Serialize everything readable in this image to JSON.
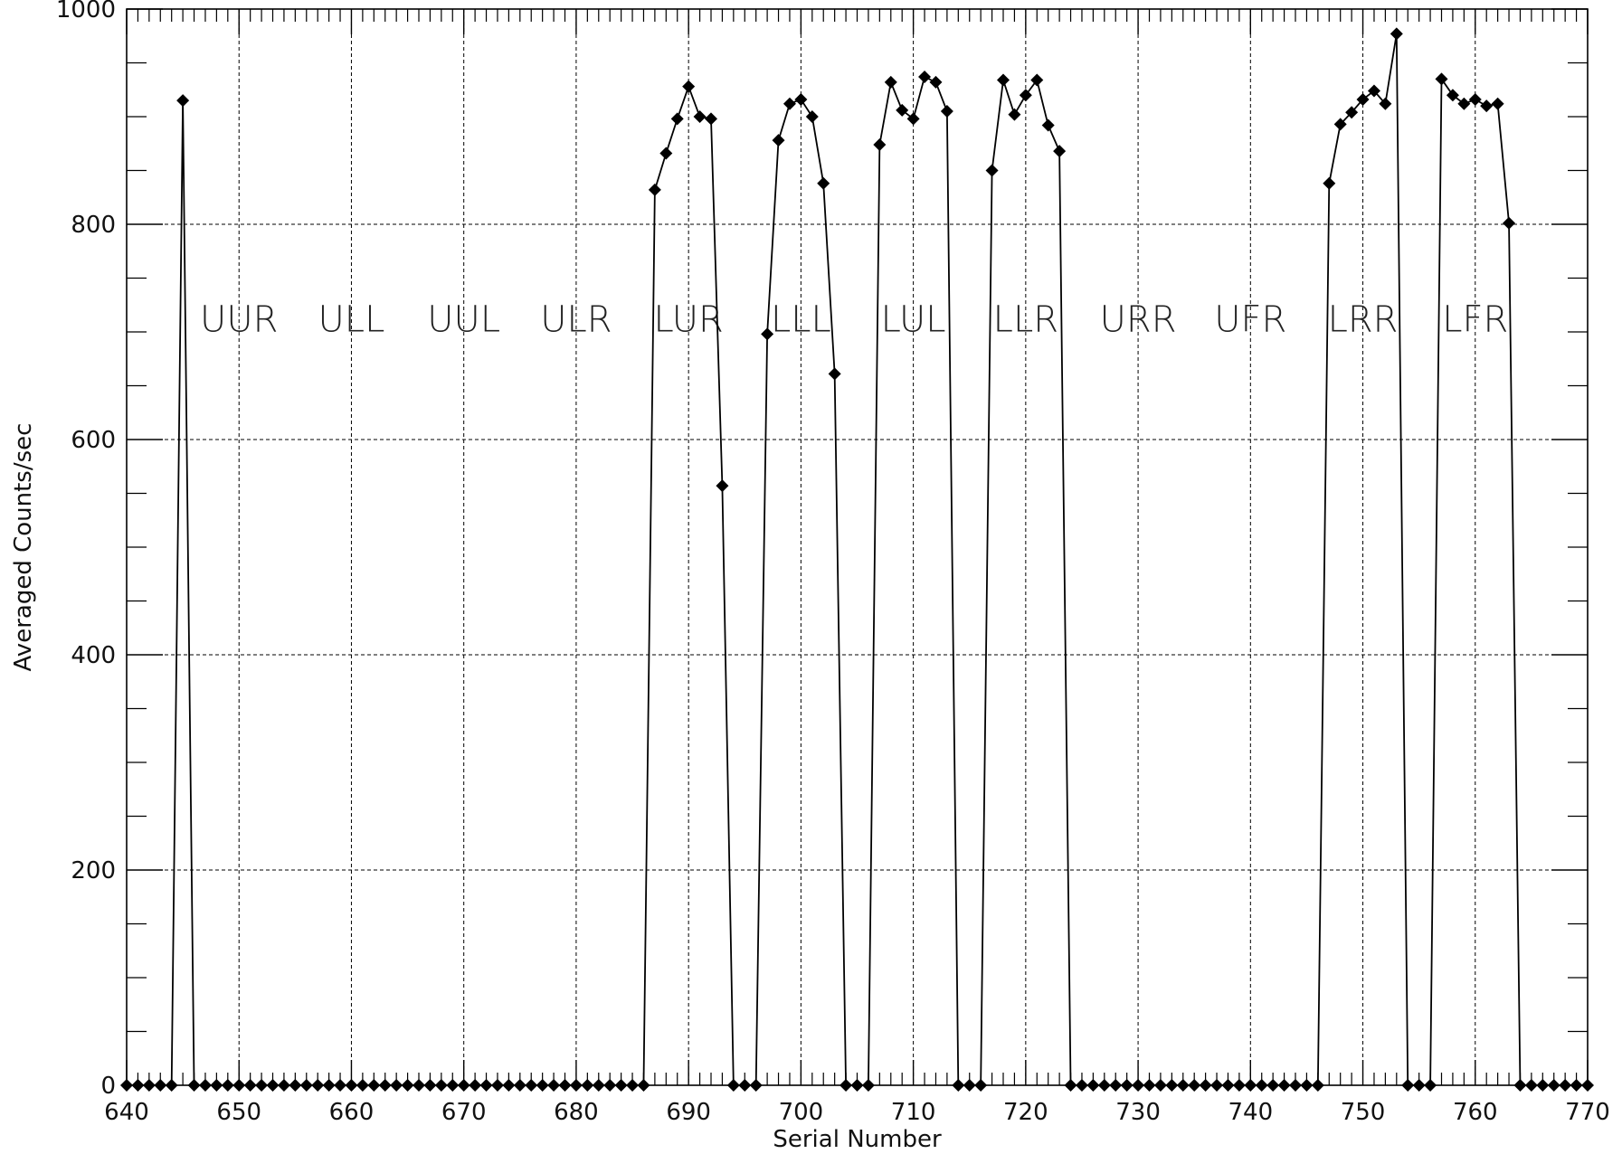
{
  "chart_data": {
    "type": "line",
    "title": "",
    "xlabel": "Serial Number",
    "ylabel": "Averaged Counts/sec",
    "xlim": [
      640,
      770
    ],
    "ylim": [
      0,
      1000
    ],
    "x_major_ticks": [
      640,
      650,
      660,
      670,
      680,
      690,
      700,
      710,
      720,
      730,
      740,
      750,
      760,
      770
    ],
    "y_major_ticks": [
      0,
      200,
      400,
      600,
      800,
      1000
    ],
    "x_tick_labels": [
      "640",
      "650",
      "660",
      "670",
      "680",
      "690",
      "700",
      "710",
      "720",
      "730",
      "740",
      "750",
      "760",
      "770"
    ],
    "y_tick_labels": [
      "0",
      "200",
      "400",
      "600",
      "800",
      "1000"
    ],
    "grid": true,
    "marker": "diamond",
    "region_labels": [
      {
        "text": "UUR",
        "x": 650
      },
      {
        "text": "ULL",
        "x": 660
      },
      {
        "text": "UUL",
        "x": 670
      },
      {
        "text": "ULR",
        "x": 680
      },
      {
        "text": "LUR",
        "x": 690
      },
      {
        "text": "LLL",
        "x": 700
      },
      {
        "text": "LUL",
        "x": 710
      },
      {
        "text": "LLR",
        "x": 720
      },
      {
        "text": "URR",
        "x": 730
      },
      {
        "text": "UFR",
        "x": 740
      },
      {
        "text": "LRR",
        "x": 750
      },
      {
        "text": "LFR",
        "x": 760
      }
    ],
    "region_label_y": 712,
    "series": [
      {
        "x": [
          640,
          641,
          642,
          643,
          644,
          645,
          646,
          647,
          648,
          649,
          650,
          651,
          652,
          653,
          654,
          655,
          656,
          657,
          658,
          659,
          660,
          661,
          662,
          663,
          664,
          665,
          666,
          667,
          668,
          669,
          670,
          671,
          672,
          673,
          674,
          675,
          676,
          677,
          678,
          679,
          680,
          681,
          682,
          683,
          684,
          685,
          686,
          687,
          688,
          689,
          690,
          691,
          692,
          693,
          694,
          695,
          696,
          697,
          698,
          699,
          700,
          701,
          702,
          703,
          704,
          705,
          706,
          707,
          708,
          709,
          710,
          711,
          712,
          713,
          714,
          715,
          716,
          717,
          718,
          719,
          720,
          721,
          722,
          723,
          724,
          725,
          726,
          727,
          728,
          729,
          730,
          731,
          732,
          733,
          734,
          735,
          736,
          737,
          738,
          739,
          740,
          741,
          742,
          743,
          744,
          745,
          746,
          747,
          748,
          749,
          750,
          751,
          752,
          753,
          754,
          755,
          756,
          757,
          758,
          759,
          760,
          761,
          762,
          763,
          764,
          765,
          766,
          767,
          768,
          769,
          770
        ],
        "y": [
          0,
          0,
          0,
          0,
          0,
          915,
          0,
          0,
          0,
          0,
          0,
          0,
          0,
          0,
          0,
          0,
          0,
          0,
          0,
          0,
          0,
          0,
          0,
          0,
          0,
          0,
          0,
          0,
          0,
          0,
          0,
          0,
          0,
          0,
          0,
          0,
          0,
          0,
          0,
          0,
          0,
          0,
          0,
          0,
          0,
          0,
          0,
          832,
          866,
          898,
          928,
          900,
          898,
          557,
          0,
          0,
          0,
          698,
          878,
          912,
          916,
          900,
          838,
          661,
          0,
          0,
          0,
          874,
          932,
          906,
          898,
          937,
          932,
          905,
          0,
          0,
          0,
          850,
          934,
          902,
          920,
          934,
          892,
          868,
          0,
          0,
          0,
          0,
          0,
          0,
          0,
          0,
          0,
          0,
          0,
          0,
          0,
          0,
          0,
          0,
          0,
          0,
          0,
          0,
          0,
          0,
          0,
          838,
          893,
          904,
          916,
          924,
          912,
          977,
          0,
          0,
          0,
          935,
          920,
          912,
          916,
          910,
          912,
          801,
          0,
          0,
          0,
          0,
          0,
          0,
          0
        ]
      }
    ]
  }
}
